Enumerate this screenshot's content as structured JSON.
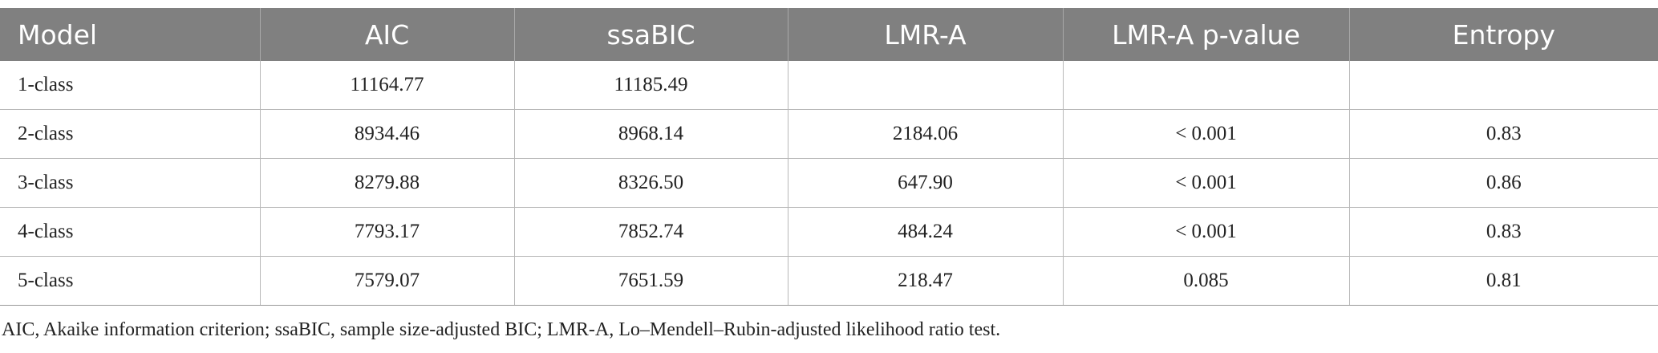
{
  "table": {
    "header": [
      "Model",
      "AIC",
      "ssaBIC",
      "LMR-A",
      "LMR-A p-value",
      "Entropy"
    ],
    "rows": [
      [
        "1-class",
        "11164.77",
        "11185.49",
        null,
        null,
        null
      ],
      [
        "2-class",
        "8934.46",
        "8968.14",
        "2184.06",
        "< 0.001",
        "0.83"
      ],
      [
        "3-class",
        "8279.88",
        "8326.50",
        "647.90",
        "< 0.001",
        "0.86"
      ],
      [
        "4-class",
        "7793.17",
        "7852.74",
        "484.24",
        "< 0.001",
        "0.83"
      ],
      [
        "5-class",
        "7579.07",
        "7651.59",
        "218.47",
        "0.085",
        "0.81"
      ]
    ]
  },
  "footnote": "AIC, Akaike information criterion; ssaBIC, sample size-adjusted BIC; LMR-A, Lo–Mendell–Rubin-adjusted likelihood ratio test."
}
